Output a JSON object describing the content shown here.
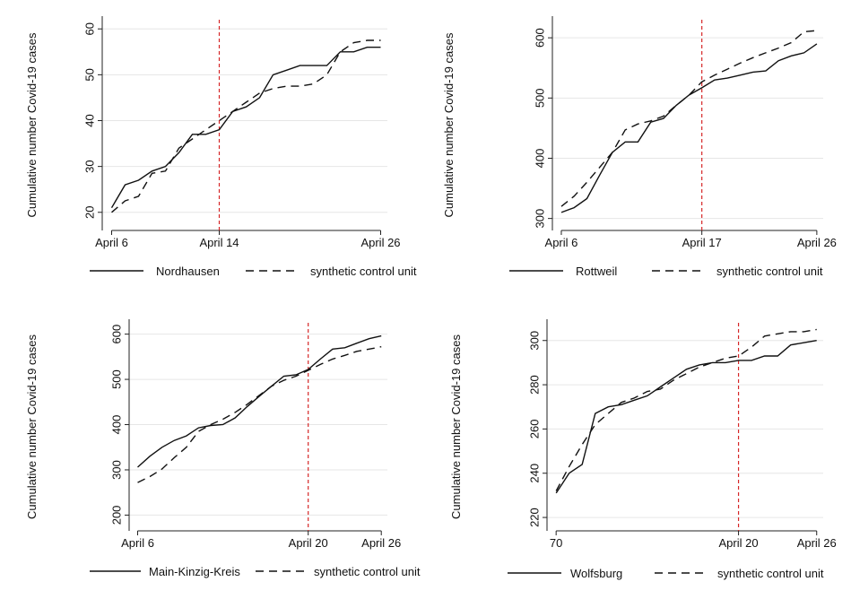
{
  "chart_data": [
    {
      "type": "line",
      "ylabel": "Cumulative number Covid-19 cases",
      "x": [
        6,
        7,
        8,
        9,
        10,
        11,
        12,
        13,
        14,
        15,
        16,
        17,
        18,
        19,
        20,
        21,
        22,
        23,
        24,
        25,
        26
      ],
      "xticks": [
        {
          "value": 6,
          "label": "April 6"
        },
        {
          "value": 14,
          "label": "April 14"
        },
        {
          "value": 26,
          "label": "April 26"
        }
      ],
      "yticks": [
        20,
        30,
        40,
        50,
        60
      ],
      "ylim": [
        18,
        62
      ],
      "xlim": [
        5.3,
        26.5
      ],
      "treatment_x": 14,
      "series": [
        {
          "name": "Nordhausen",
          "style": "solid",
          "values": [
            21,
            26,
            27,
            29,
            30,
            33,
            37,
            37,
            38,
            42,
            43,
            45,
            50,
            51,
            52,
            52,
            52,
            55,
            55,
            56,
            56
          ]
        },
        {
          "name": "synthetic control unit",
          "style": "dashed",
          "values": [
            20,
            22.5,
            23.5,
            28.5,
            29,
            34,
            36,
            38,
            40,
            42,
            44,
            46,
            47,
            47.5,
            47.5,
            48,
            50,
            55,
            57,
            57.5,
            57.5
          ]
        }
      ]
    },
    {
      "type": "line",
      "ylabel": "Cumulative number Covid-19 cases",
      "x": [
        6,
        7,
        8,
        9,
        10,
        11,
        12,
        13,
        14,
        15,
        16,
        17,
        18,
        19,
        20,
        21,
        22,
        23,
        24,
        25,
        26
      ],
      "xticks": [
        {
          "value": 6,
          "label": "April 6"
        },
        {
          "value": 17,
          "label": "April 17"
        },
        {
          "value": 26,
          "label": "April 26"
        }
      ],
      "yticks": [
        300,
        400,
        500,
        600
      ],
      "ylim": [
        295,
        630
      ],
      "xlim": [
        5.3,
        26.5
      ],
      "treatment_x": 17,
      "series": [
        {
          "name": "Rottweil",
          "style": "solid",
          "values": [
            310,
            318,
            333,
            372,
            410,
            427,
            427,
            460,
            466,
            488,
            505,
            517,
            530,
            533,
            538,
            543,
            545,
            562,
            570,
            575,
            590
          ]
        },
        {
          "name": "synthetic control unit",
          "style": "dashed",
          "values": [
            320,
            337,
            360,
            385,
            410,
            447,
            457,
            462,
            470,
            488,
            505,
            527,
            538,
            548,
            558,
            567,
            575,
            583,
            592,
            610,
            612
          ]
        }
      ]
    },
    {
      "type": "line",
      "ylabel": "Cumulative number Covid-19 cases",
      "x": [
        6,
        7,
        8,
        9,
        10,
        11,
        12,
        13,
        14,
        15,
        16,
        17,
        18,
        19,
        20,
        21,
        22,
        23,
        24,
        25,
        26
      ],
      "xticks": [
        {
          "value": 6,
          "label": "April 6"
        },
        {
          "value": 20,
          "label": "April 20"
        },
        {
          "value": 26,
          "label": "April 26"
        }
      ],
      "yticks": [
        200,
        300,
        400,
        500,
        600
      ],
      "ylim": [
        185,
        625
      ],
      "xlim": [
        5.3,
        26.5
      ],
      "treatment_x": 20,
      "series": [
        {
          "name": "Main-Kinzig-Kreis",
          "style": "solid",
          "values": [
            306,
            330,
            350,
            365,
            375,
            393,
            398,
            400,
            415,
            440,
            463,
            485,
            507,
            510,
            522,
            545,
            567,
            570,
            580,
            590,
            596
          ]
        },
        {
          "name": "synthetic control unit",
          "style": "dashed",
          "values": [
            272,
            285,
            302,
            327,
            350,
            385,
            400,
            412,
            427,
            445,
            465,
            485,
            498,
            507,
            520,
            533,
            545,
            553,
            562,
            567,
            572
          ]
        }
      ]
    },
    {
      "type": "line",
      "ylabel": "Cumulative number Covid-19 cases",
      "x": [
        70,
        71,
        72,
        73,
        74,
        75,
        76,
        77,
        78,
        79,
        80,
        81,
        82,
        83,
        84,
        85,
        86,
        87,
        88,
        89,
        90
      ],
      "xticks": [
        {
          "value": 70,
          "label": "70"
        },
        {
          "value": 84,
          "label": "April 20"
        },
        {
          "value": 90,
          "label": "April 26"
        }
      ],
      "yticks": [
        220,
        240,
        260,
        280,
        300
      ],
      "ylim": [
        218,
        308
      ],
      "xlim": [
        69.3,
        90.5
      ],
      "treatment_x": 84,
      "series": [
        {
          "name": "Wolfsburg",
          "style": "solid",
          "values": [
            231,
            240,
            244,
            267,
            270,
            271,
            273,
            275,
            279,
            283,
            287,
            289,
            290,
            290,
            291,
            291,
            293,
            293,
            298,
            299,
            300
          ]
        },
        {
          "name": "synthetic control unit",
          "style": "dashed",
          "values": [
            232,
            243,
            253,
            262,
            267,
            272,
            274,
            277,
            278,
            282,
            285,
            288,
            290,
            292,
            293,
            297,
            302,
            303,
            304,
            304,
            305
          ]
        }
      ]
    }
  ]
}
